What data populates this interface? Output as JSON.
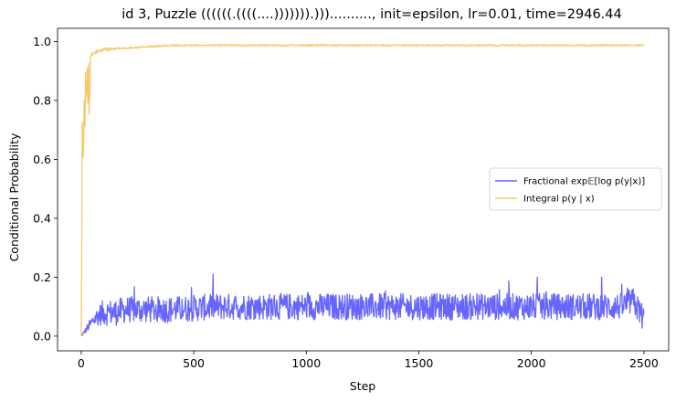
{
  "chart_data": {
    "type": "line",
    "title": "id 3, Puzzle ((((((.((((....))))))).))).........., init=epsilon, lr=0.01, time=2946.44",
    "xlabel": "Step",
    "ylabel": "Conditional Probability",
    "xlim": [
      -105,
      2610
    ],
    "ylim": [
      -0.05,
      1.045
    ],
    "xticks": [
      0,
      500,
      1000,
      1500,
      2000,
      2500
    ],
    "yticks": [
      0.0,
      0.2,
      0.4,
      0.6,
      0.8,
      1.0
    ],
    "xtick_labels": [
      "0",
      "500",
      "1000",
      "1500",
      "2000",
      "2500"
    ],
    "ytick_labels": [
      "0.0",
      "0.2",
      "0.4",
      "0.6",
      "0.8",
      "1.0"
    ],
    "legend_position": "center-right",
    "grid": false,
    "series": [
      {
        "name": "Fractional exp𝔼[log p(y|x)]",
        "color": "#6666ff",
        "x": [
          0,
          10,
          20,
          30,
          50,
          75,
          100,
          150,
          200,
          300,
          400,
          500,
          600,
          700,
          800,
          900,
          1000,
          1100,
          1200,
          1300,
          1400,
          1500,
          1600,
          1700,
          1800,
          1900,
          2000,
          2100,
          2200,
          2300,
          2400,
          2450,
          2500
        ],
        "y": [
          0.0,
          0.01,
          0.02,
          0.03,
          0.05,
          0.07,
          0.08,
          0.08,
          0.09,
          0.09,
          0.09,
          0.095,
          0.1,
          0.1,
          0.1,
          0.1,
          0.1,
          0.1,
          0.1,
          0.1,
          0.1,
          0.1,
          0.1,
          0.1,
          0.1,
          0.1,
          0.1,
          0.1,
          0.1,
          0.1,
          0.1,
          0.12,
          0.06
        ],
        "noise_amplitude": 0.045,
        "peak_max": 0.22
      },
      {
        "name": "Integral p(y | x)",
        "color": "#f9c766",
        "x": [
          0,
          5,
          10,
          15,
          20,
          30,
          40,
          60,
          80,
          100,
          150,
          200,
          300,
          400,
          500,
          600,
          800,
          1000,
          1200,
          1400,
          1500,
          1600,
          1800,
          2000,
          2200,
          2400,
          2500
        ],
        "y": [
          0.0,
          0.94,
          0.72,
          0.96,
          0.9,
          0.95,
          0.96,
          0.97,
          0.975,
          0.98,
          0.98,
          0.98,
          0.985,
          0.99,
          0.99,
          0.99,
          0.99,
          0.99,
          0.99,
          0.99,
          0.99,
          0.99,
          0.99,
          0.99,
          0.99,
          0.99,
          0.99
        ]
      }
    ]
  }
}
